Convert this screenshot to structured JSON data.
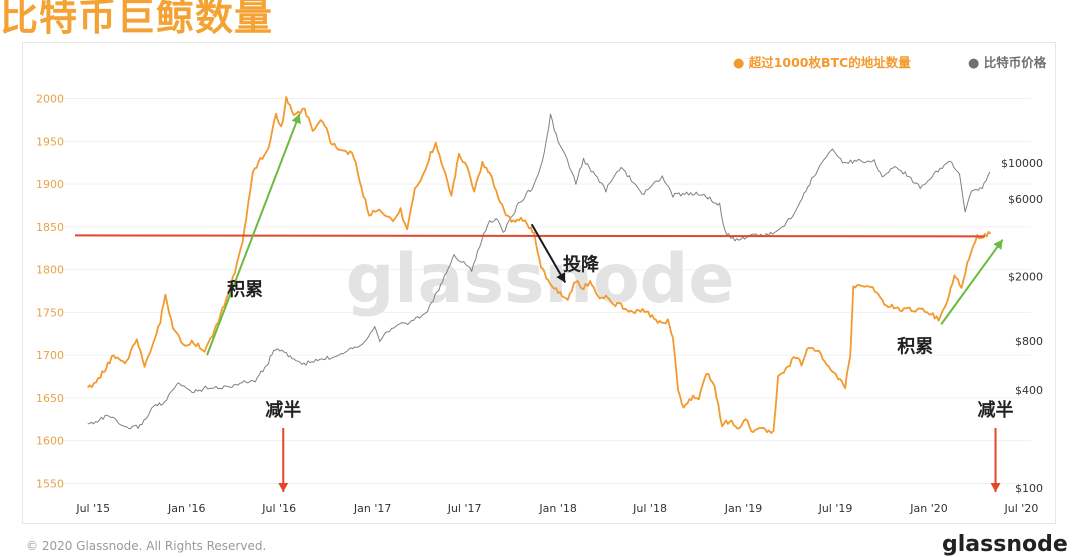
{
  "title": "比特币巨鲸数量",
  "legend": {
    "primary": "超过1000枚BTC的地址数量",
    "secondary": "比特币价格",
    "primary_color": "#f29a2e",
    "secondary_color": "#808080"
  },
  "watermark": "glassnode",
  "footer": {
    "copyright": "© 2020 Glassnode. All Rights Reserved.",
    "brand": "glassnode"
  },
  "chart_data": {
    "type": "line",
    "title": "比特币巨鲸数量",
    "x_ticks": [
      "Jul '15",
      "Jan '16",
      "Jul '16",
      "Jan '17",
      "Jul '17",
      "Jan '18",
      "Jul '18",
      "Jan '19",
      "Jul '19",
      "Jan '20",
      "Jul '20"
    ],
    "left_axis": {
      "ticks": [
        1550,
        1600,
        1650,
        1700,
        1750,
        1800,
        1850,
        1900,
        1950,
        2000
      ],
      "range": [
        1540,
        2010
      ]
    },
    "right_axis": {
      "scale": "log",
      "ticks": [
        "$100",
        "$400",
        "$800",
        "$2000",
        "$6000",
        "$10000"
      ],
      "values": [
        100,
        400,
        800,
        2000,
        6000,
        10000
      ]
    },
    "series": [
      {
        "name": "超过1000枚BTC的地址数量",
        "axis": "left",
        "color": "#f29a2e",
        "points": [
          [
            "2015-06-20",
            1660
          ],
          [
            "2015-07-15",
            1675
          ],
          [
            "2015-08-10",
            1700
          ],
          [
            "2015-09-05",
            1692
          ],
          [
            "2015-09-25",
            1720
          ],
          [
            "2015-10-10",
            1685
          ],
          [
            "2015-10-25",
            1710
          ],
          [
            "2015-11-10",
            1740
          ],
          [
            "2015-11-20",
            1770
          ],
          [
            "2015-12-05",
            1730
          ],
          [
            "2015-12-25",
            1712
          ],
          [
            "2016-01-15",
            1715
          ],
          [
            "2016-02-05",
            1705
          ],
          [
            "2016-02-25",
            1728
          ],
          [
            "2016-03-15",
            1760
          ],
          [
            "2016-04-01",
            1790
          ],
          [
            "2016-04-20",
            1830
          ],
          [
            "2016-05-01",
            1875
          ],
          [
            "2016-05-10",
            1915
          ],
          [
            "2016-05-25",
            1928
          ],
          [
            "2016-06-10",
            1945
          ],
          [
            "2016-06-25",
            1980
          ],
          [
            "2016-07-05",
            1965
          ],
          [
            "2016-07-15",
            1999
          ],
          [
            "2016-07-30",
            1982
          ],
          [
            "2016-08-20",
            1986
          ],
          [
            "2016-09-05",
            1965
          ],
          [
            "2016-09-25",
            1975
          ],
          [
            "2016-10-10",
            1950
          ],
          [
            "2016-10-25",
            1942
          ],
          [
            "2016-11-10",
            1938
          ],
          [
            "2016-11-25",
            1933
          ],
          [
            "2016-12-10",
            1895
          ],
          [
            "2016-12-25",
            1865
          ],
          [
            "2017-01-10",
            1870
          ],
          [
            "2017-01-25",
            1865
          ],
          [
            "2017-02-10",
            1858
          ],
          [
            "2017-02-25",
            1870
          ],
          [
            "2017-03-10",
            1845
          ],
          [
            "2017-03-25",
            1895
          ],
          [
            "2017-04-10",
            1910
          ],
          [
            "2017-04-25",
            1935
          ],
          [
            "2017-05-05",
            1948
          ],
          [
            "2017-05-20",
            1920
          ],
          [
            "2017-06-05",
            1885
          ],
          [
            "2017-06-20",
            1935
          ],
          [
            "2017-07-05",
            1922
          ],
          [
            "2017-07-20",
            1890
          ],
          [
            "2017-08-05",
            1925
          ],
          [
            "2017-08-20",
            1912
          ],
          [
            "2017-09-05",
            1885
          ],
          [
            "2017-09-20",
            1865
          ],
          [
            "2017-10-05",
            1855
          ],
          [
            "2017-10-20",
            1862
          ],
          [
            "2017-11-05",
            1850
          ],
          [
            "2017-11-15",
            1842
          ],
          [
            "2017-11-25",
            1810
          ],
          [
            "2017-12-05",
            1795
          ],
          [
            "2017-12-20",
            1780
          ],
          [
            "2018-01-05",
            1772
          ],
          [
            "2018-01-20",
            1765
          ],
          [
            "2018-02-05",
            1788
          ],
          [
            "2018-02-20",
            1778
          ],
          [
            "2018-03-05",
            1786
          ],
          [
            "2018-03-20",
            1768
          ],
          [
            "2018-04-05",
            1770
          ],
          [
            "2018-04-20",
            1760
          ],
          [
            "2018-05-05",
            1758
          ],
          [
            "2018-05-20",
            1752
          ],
          [
            "2018-06-05",
            1750
          ],
          [
            "2018-06-20",
            1752
          ],
          [
            "2018-07-05",
            1745
          ],
          [
            "2018-07-20",
            1738
          ],
          [
            "2018-08-05",
            1740
          ],
          [
            "2018-08-15",
            1720
          ],
          [
            "2018-08-25",
            1660
          ],
          [
            "2018-09-05",
            1640
          ],
          [
            "2018-09-20",
            1650
          ],
          [
            "2018-10-05",
            1650
          ],
          [
            "2018-10-20",
            1680
          ],
          [
            "2018-11-05",
            1662
          ],
          [
            "2018-11-20",
            1618
          ],
          [
            "2018-12-05",
            1624
          ],
          [
            "2018-12-20",
            1615
          ],
          [
            "2019-01-05",
            1625
          ],
          [
            "2019-01-20",
            1610
          ],
          [
            "2019-02-05",
            1617
          ],
          [
            "2019-02-20",
            1610
          ],
          [
            "2019-03-01",
            1610
          ],
          [
            "2019-03-10",
            1675
          ],
          [
            "2019-03-25",
            1682
          ],
          [
            "2019-04-10",
            1698
          ],
          [
            "2019-04-25",
            1690
          ],
          [
            "2019-05-10",
            1710
          ],
          [
            "2019-05-25",
            1705
          ],
          [
            "2019-06-10",
            1695
          ],
          [
            "2019-06-25",
            1680
          ],
          [
            "2019-07-10",
            1672
          ],
          [
            "2019-07-20",
            1662
          ],
          [
            "2019-07-30",
            1700
          ],
          [
            "2019-08-05",
            1780
          ],
          [
            "2019-08-20",
            1782
          ],
          [
            "2019-09-05",
            1778
          ],
          [
            "2019-09-20",
            1775
          ],
          [
            "2019-10-05",
            1760
          ],
          [
            "2019-10-20",
            1758
          ],
          [
            "2019-11-05",
            1752
          ],
          [
            "2019-11-20",
            1755
          ],
          [
            "2019-12-05",
            1750
          ],
          [
            "2019-12-20",
            1755
          ],
          [
            "2020-01-05",
            1748
          ],
          [
            "2020-01-20",
            1742
          ],
          [
            "2020-02-05",
            1760
          ],
          [
            "2020-02-20",
            1792
          ],
          [
            "2020-03-05",
            1780
          ],
          [
            "2020-03-20",
            1815
          ],
          [
            "2020-04-05",
            1838
          ],
          [
            "2020-04-20",
            1840
          ],
          [
            "2020-05-01",
            1842
          ]
        ]
      },
      {
        "name": "比特币价格",
        "axis": "right",
        "color": "#808080",
        "points": [
          [
            "2015-06-20",
            245
          ],
          [
            "2015-08-01",
            280
          ],
          [
            "2015-09-01",
            232
          ],
          [
            "2015-10-01",
            240
          ],
          [
            "2015-11-01",
            330
          ],
          [
            "2015-11-15",
            325
          ],
          [
            "2015-12-15",
            440
          ],
          [
            "2016-01-15",
            390
          ],
          [
            "2016-02-15",
            420
          ],
          [
            "2016-03-15",
            415
          ],
          [
            "2016-04-15",
            440
          ],
          [
            "2016-05-15",
            460
          ],
          [
            "2016-06-10",
            590
          ],
          [
            "2016-06-20",
            720
          ],
          [
            "2016-07-15",
            670
          ],
          [
            "2016-08-15",
            575
          ],
          [
            "2016-09-15",
            610
          ],
          [
            "2016-10-15",
            640
          ],
          [
            "2016-11-15",
            715
          ],
          [
            "2016-12-15",
            780
          ],
          [
            "2017-01-05",
            1000
          ],
          [
            "2017-01-15",
            820
          ],
          [
            "2017-02-15",
            1000
          ],
          [
            "2017-03-15",
            1050
          ],
          [
            "2017-04-15",
            1180
          ],
          [
            "2017-05-15",
            1750
          ],
          [
            "2017-06-10",
            2700
          ],
          [
            "2017-07-15",
            2200
          ],
          [
            "2017-08-15",
            4200
          ],
          [
            "2017-09-01",
            4600
          ],
          [
            "2017-09-15",
            3700
          ],
          [
            "2017-10-15",
            5600
          ],
          [
            "2017-11-15",
            7300
          ],
          [
            "2017-12-05",
            11500
          ],
          [
            "2017-12-17",
            19500
          ],
          [
            "2018-01-01",
            13500
          ],
          [
            "2018-01-15",
            11000
          ],
          [
            "2018-02-05",
            7500
          ],
          [
            "2018-02-20",
            10500
          ],
          [
            "2018-03-15",
            8300
          ],
          [
            "2018-04-05",
            6800
          ],
          [
            "2018-05-05",
            9500
          ],
          [
            "2018-06-15",
            6400
          ],
          [
            "2018-07-25",
            8200
          ],
          [
            "2018-08-15",
            6300
          ],
          [
            "2018-09-15",
            6500
          ],
          [
            "2018-10-15",
            6400
          ],
          [
            "2018-11-15",
            5500
          ],
          [
            "2018-11-25",
            3800
          ],
          [
            "2018-12-15",
            3300
          ],
          [
            "2019-01-15",
            3600
          ],
          [
            "2019-02-15",
            3600
          ],
          [
            "2019-03-15",
            3900
          ],
          [
            "2019-04-15",
            5100
          ],
          [
            "2019-05-15",
            7900
          ],
          [
            "2019-06-25",
            12500
          ],
          [
            "2019-07-15",
            10000
          ],
          [
            "2019-08-15",
            10300
          ],
          [
            "2019-09-15",
            10200
          ],
          [
            "2019-10-01",
            8300
          ],
          [
            "2019-10-26",
            9500
          ],
          [
            "2019-11-15",
            8600
          ],
          [
            "2019-12-15",
            7100
          ],
          [
            "2020-01-15",
            8700
          ],
          [
            "2020-02-12",
            10300
          ],
          [
            "2020-03-01",
            8600
          ],
          [
            "2020-03-12",
            5000
          ],
          [
            "2020-03-25",
            6700
          ],
          [
            "2020-04-15",
            7000
          ],
          [
            "2020-04-30",
            8800
          ]
        ]
      }
    ],
    "reference_line": {
      "axis": "left",
      "value": 1840,
      "color": "#e5452d"
    },
    "annotations": [
      {
        "text": "积累",
        "kind": "arrow-up",
        "color": "#6cba40",
        "from": [
          "2016-02-10",
          1700
        ],
        "to": [
          "2016-08-10",
          1982
        ],
        "label_at": [
          "2016-04-25",
          1770
        ]
      },
      {
        "text": "投降",
        "kind": "arrow-down",
        "color": "#1a1a1a",
        "from": [
          "2017-11-10",
          1853
        ],
        "to": [
          "2018-01-15",
          1785
        ],
        "label_at": [
          "2018-02-15",
          1799
        ]
      },
      {
        "text": "积累",
        "kind": "arrow-up",
        "color": "#6cba40",
        "from": [
          "2020-01-25",
          1736
        ],
        "to": [
          "2020-05-25",
          1835
        ],
        "label_at": [
          "2019-12-05",
          1703
        ]
      },
      {
        "text": "减半",
        "kind": "halving",
        "color": "#e5452d",
        "date": "2016-07-09"
      },
      {
        "text": "减半",
        "kind": "halving",
        "color": "#e5452d",
        "date": "2020-05-11"
      }
    ]
  }
}
